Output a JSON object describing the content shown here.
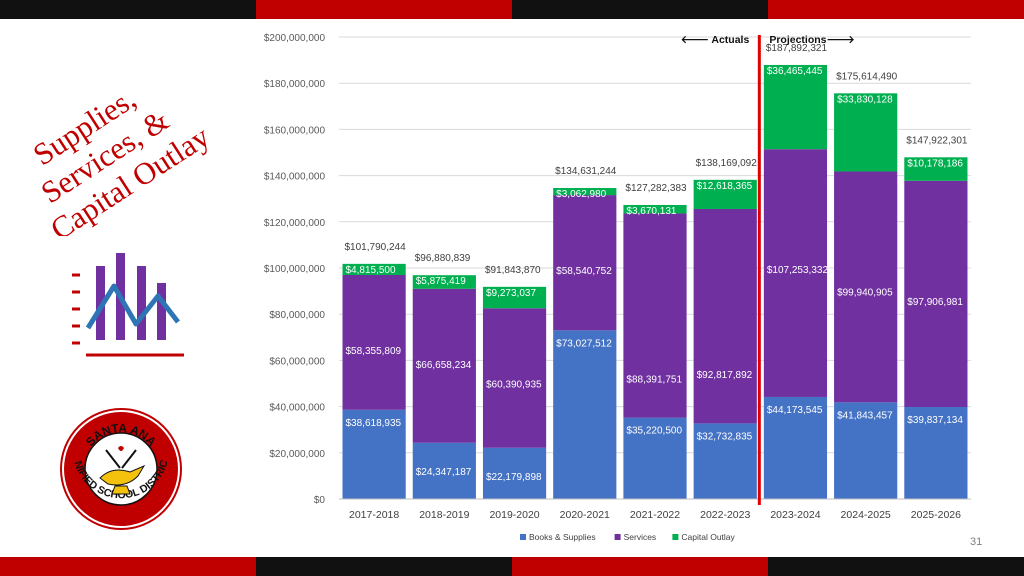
{
  "slide": {
    "title_lines": [
      "Supplies,",
      "Services, &",
      "Capital Outlay"
    ],
    "page_number": "31",
    "colors": {
      "accent_red": "#c00000",
      "dark": "#111111"
    }
  },
  "seal": {
    "top_text": "SANTA ANA",
    "side_text": "UNIFIED SCHOOL DISTRICT",
    "icon": "lamp-of-learning-icon"
  },
  "chart_data": {
    "type": "bar",
    "stacked": true,
    "categories": [
      "2017-2018",
      "2018-2019",
      "2019-2020",
      "2020-2021",
      "2021-2022",
      "2022-2023",
      "2023-2024",
      "2024-2025",
      "2025-2026"
    ],
    "series": [
      {
        "name": "Books & Supplies",
        "color": "#4472c4",
        "values": [
          38618935,
          24347187,
          22179898,
          73027512,
          35220500,
          32732835,
          44173545,
          41843457,
          39837134
        ],
        "labels": [
          "$38,618,935",
          "$24,347,187",
          "$22,179,898",
          "$73,027,512",
          "$35,220,500",
          "$32,732,835",
          "$44,173,545",
          "$41,843,457",
          "$39,837,134"
        ]
      },
      {
        "name": "Services",
        "color": "#7030a0",
        "values": [
          58355809,
          66658234,
          60390935,
          58540752,
          88391751,
          92817892,
          107253332,
          99940905,
          97906981
        ],
        "labels": [
          "$58,355,809",
          "$66,658,234",
          "$60,390,935",
          "$58,540,752",
          "$88,391,751",
          "$92,817,892",
          "$107,253,332",
          "$99,940,905",
          "$97,906,981"
        ]
      },
      {
        "name": "Capital Outlay",
        "color": "#00b050",
        "values": [
          4815500,
          5875419,
          9273037,
          3062980,
          3670131,
          12618365,
          36465445,
          33830128,
          10178186
        ],
        "labels": [
          "$4,815,500",
          "$5,875,419",
          "$9,273,037",
          "$3,062,980",
          "$3,670,131",
          "$12,618,365",
          "$36,465,445",
          "$33,830,128",
          "$10,178,186"
        ]
      }
    ],
    "totals": [
      101790244,
      96880839,
      91843870,
      134631244,
      127282383,
      138169092,
      187892321,
      175614490,
      147922301
    ],
    "total_labels": [
      "$101,790,244",
      "$96,880,839",
      "$91,843,870",
      "$134,631,244",
      "$127,282,383",
      "$138,169,092",
      "$187,892,321",
      "$175,614,490",
      "$147,922,301"
    ],
    "ylim": [
      0,
      200000000
    ],
    "yticks": [
      0,
      20000000,
      40000000,
      60000000,
      80000000,
      100000000,
      120000000,
      140000000,
      160000000,
      180000000,
      200000000
    ],
    "ytick_labels": [
      "$0",
      "$20,000,000",
      "$40,000,000",
      "$60,000,000",
      "$80,000,000",
      "$100,000,000",
      "$120,000,000",
      "$140,000,000",
      "$160,000,000",
      "$180,000,000",
      "$200,000,000"
    ],
    "grid": true,
    "legend_position": "bottom",
    "divider": {
      "after_category": "2022-2023",
      "color": "#e00000",
      "left_label": "🡐 Actuals",
      "right_label": "Projections🡒"
    },
    "title": "",
    "xlabel": "",
    "ylabel": ""
  }
}
